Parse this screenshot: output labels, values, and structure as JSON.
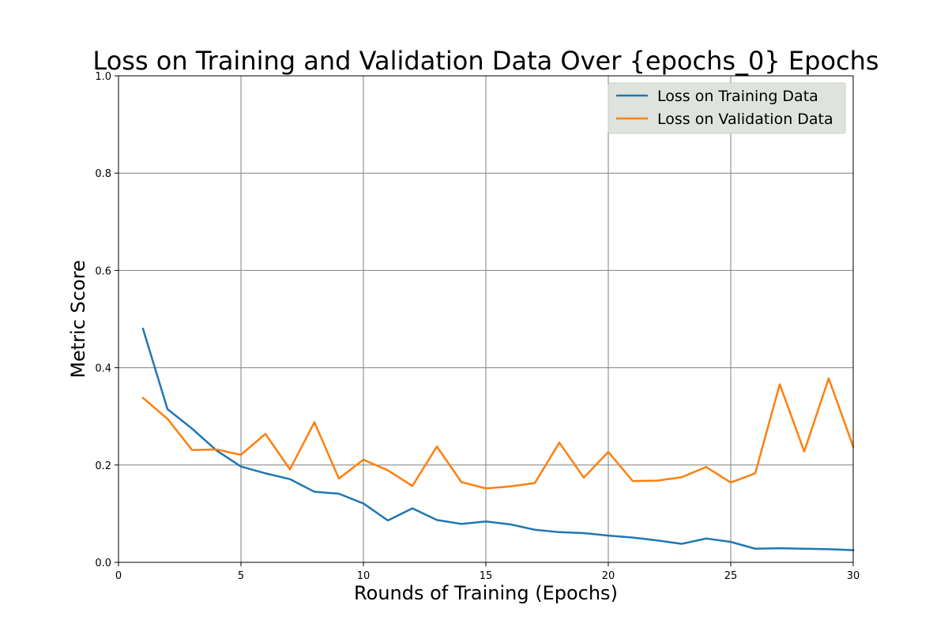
{
  "chart_data": {
    "type": "line",
    "title": "Loss on Training and Validation Data Over {epochs_0} Epochs",
    "xlabel": "Rounds of Training (Epochs)",
    "ylabel": "Metric Score",
    "xlim": [
      0,
      30
    ],
    "ylim": [
      0,
      1.0
    ],
    "x_ticks": [
      "0",
      "5",
      "10",
      "15",
      "20",
      "25",
      "30"
    ],
    "y_ticks": [
      "0.0",
      "0.2",
      "0.4",
      "0.6",
      "0.8",
      "1.0"
    ],
    "grid": true,
    "legend_position": "top-right",
    "x": [
      1,
      2,
      3,
      4,
      5,
      6,
      7,
      8,
      9,
      10,
      11,
      12,
      13,
      14,
      15,
      16,
      17,
      18,
      19,
      20,
      21,
      22,
      23,
      24,
      25,
      26,
      27,
      28,
      29,
      30
    ],
    "series": [
      {
        "name": "Loss on Training Data",
        "color": "#1f77b4",
        "values": [
          0.48,
          0.315,
          0.275,
          0.23,
          0.197,
          0.183,
          0.171,
          0.145,
          0.141,
          0.121,
          0.086,
          0.111,
          0.087,
          0.079,
          0.084,
          0.078,
          0.067,
          0.062,
          0.06,
          0.055,
          0.051,
          0.045,
          0.038,
          0.049,
          0.042,
          0.028,
          0.029,
          0.028,
          0.027,
          0.025
        ]
      },
      {
        "name": "Loss on Validation Data",
        "color": "#ff7f0e",
        "values": [
          0.338,
          0.295,
          0.231,
          0.232,
          0.221,
          0.264,
          0.191,
          0.288,
          0.172,
          0.211,
          0.189,
          0.157,
          0.238,
          0.165,
          0.152,
          0.156,
          0.163,
          0.246,
          0.174,
          0.227,
          0.167,
          0.168,
          0.175,
          0.196,
          0.164,
          0.183,
          0.366,
          0.228,
          0.378,
          0.238
        ]
      }
    ]
  }
}
